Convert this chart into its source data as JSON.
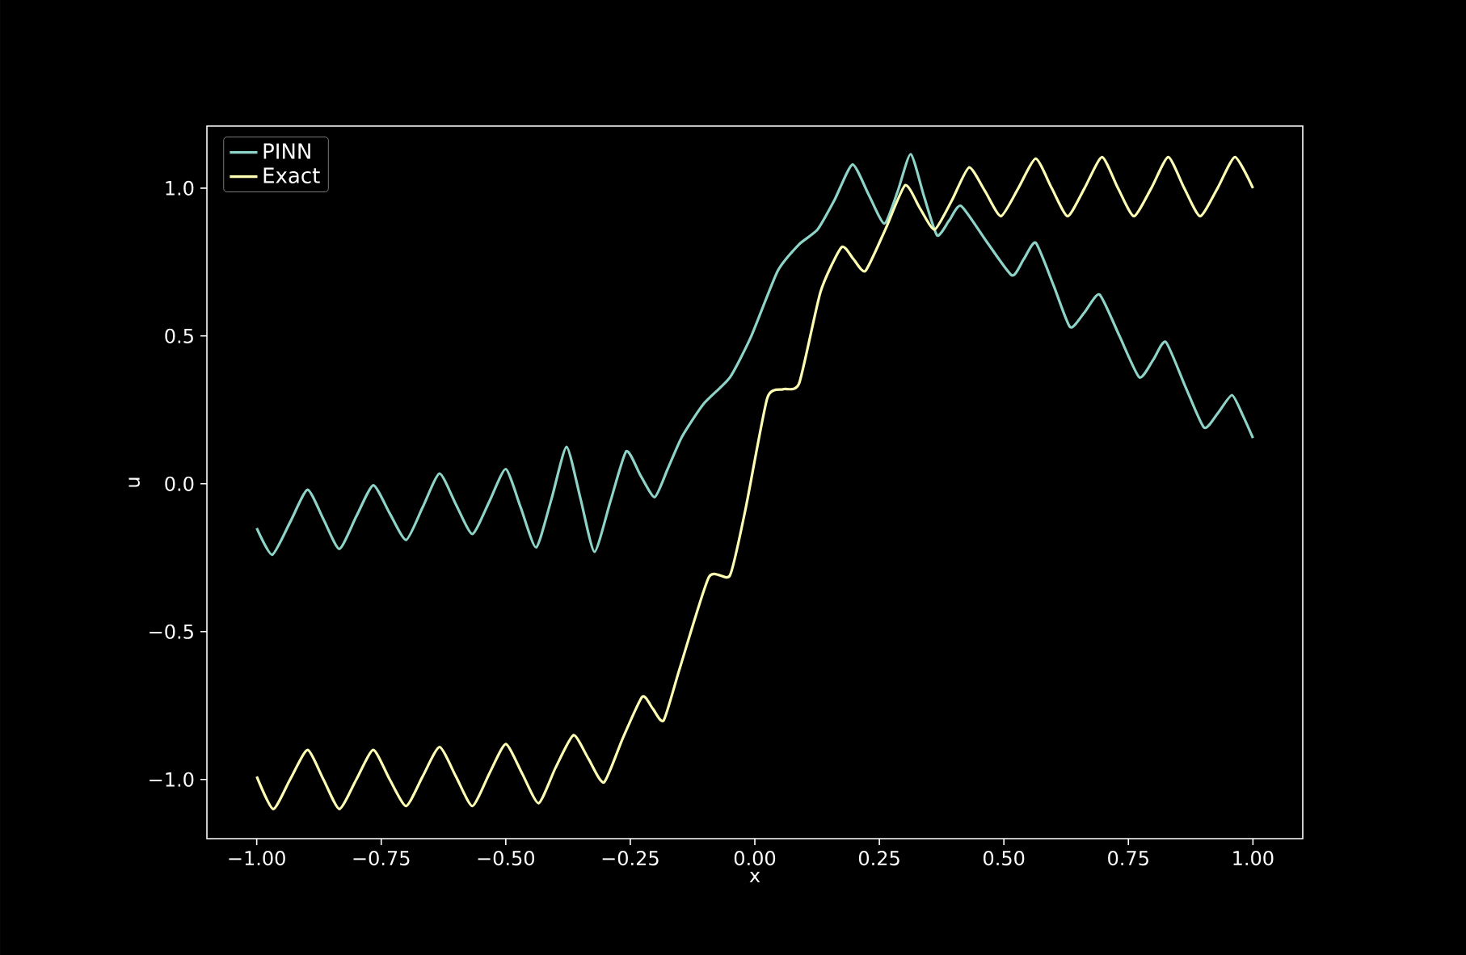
{
  "chart_data": {
    "type": "line",
    "xlabel": "x",
    "ylabel": "u",
    "xlim": [
      -1.1,
      1.1
    ],
    "ylim": [
      -1.2,
      1.21
    ],
    "xticks": [
      {
        "value": -1,
        "label": "−1.00"
      },
      {
        "value": -0.75,
        "label": "−0.75"
      },
      {
        "value": -0.5,
        "label": "−0.50"
      },
      {
        "value": -0.25,
        "label": "−0.25"
      },
      {
        "value": 0,
        "label": "0.00"
      },
      {
        "value": 0.25,
        "label": "0.25"
      },
      {
        "value": 0.5,
        "label": "0.50"
      },
      {
        "value": 0.75,
        "label": "0.75"
      },
      {
        "value": 1,
        "label": "1.00"
      }
    ],
    "yticks": [
      {
        "value": -1,
        "label": "−1.0"
      },
      {
        "value": -0.5,
        "label": "−0.5"
      },
      {
        "value": 0,
        "label": "0.0"
      },
      {
        "value": 0.5,
        "label": "0.5"
      },
      {
        "value": 1,
        "label": "1.0"
      }
    ],
    "legend": "top left",
    "series": [
      {
        "name": "PINN",
        "color": "#8dd3c7",
        "x": [
          -1.0,
          -0.969,
          -0.933,
          -0.898,
          -0.866,
          -0.834,
          -0.8,
          -0.766,
          -0.733,
          -0.7,
          -0.667,
          -0.633,
          -0.6,
          -0.567,
          -0.533,
          -0.5,
          -0.47,
          -0.439,
          -0.408,
          -0.378,
          -0.35,
          -0.322,
          -0.29,
          -0.258,
          -0.23,
          -0.201,
          -0.175,
          -0.146,
          -0.103,
          -0.05,
          -0.007,
          0.046,
          0.089,
          0.126,
          0.16,
          0.196,
          0.228,
          0.26,
          0.287,
          0.313,
          0.34,
          0.366,
          0.39,
          0.414,
          0.465,
          0.516,
          0.54,
          0.564,
          0.6,
          0.633,
          0.662,
          0.692,
          0.732,
          0.772,
          0.8,
          0.825,
          0.864,
          0.902,
          0.93,
          0.958,
          0.98,
          1.0
        ],
        "values": [
          -0.15,
          -0.24,
          -0.13,
          -0.02,
          -0.12,
          -0.22,
          -0.11,
          -0.005,
          -0.1,
          -0.19,
          -0.08,
          0.035,
          -0.07,
          -0.17,
          -0.06,
          0.05,
          -0.08,
          -0.215,
          -0.05,
          0.125,
          -0.05,
          -0.23,
          -0.06,
          0.11,
          0.03,
          -0.045,
          0.05,
          0.16,
          0.27,
          0.36,
          0.5,
          0.72,
          0.81,
          0.86,
          0.96,
          1.08,
          0.98,
          0.88,
          0.99,
          1.115,
          0.97,
          0.84,
          0.89,
          0.94,
          0.82,
          0.705,
          0.76,
          0.815,
          0.67,
          0.53,
          0.58,
          0.64,
          0.5,
          0.36,
          0.42,
          0.48,
          0.33,
          0.19,
          0.24,
          0.3,
          0.23,
          0.155
        ]
      },
      {
        "name": "Exact",
        "color": "#feffb3",
        "x": [
          -1.0,
          -0.967,
          -0.933,
          -0.898,
          -0.866,
          -0.834,
          -0.8,
          -0.766,
          -0.733,
          -0.7,
          -0.667,
          -0.633,
          -0.6,
          -0.567,
          -0.533,
          -0.5,
          -0.467,
          -0.434,
          -0.4,
          -0.364,
          -0.334,
          -0.303,
          -0.265,
          -0.226,
          -0.205,
          -0.183,
          -0.15,
          -0.092,
          -0.05,
          -0.018,
          0.025,
          0.057,
          0.089,
          0.132,
          0.174,
          0.198,
          0.222,
          0.262,
          0.302,
          0.332,
          0.361,
          0.396,
          0.43,
          0.462,
          0.494,
          0.529,
          0.564,
          0.596,
          0.628,
          0.662,
          0.697,
          0.729,
          0.761,
          0.796,
          0.83,
          0.862,
          0.894,
          0.929,
          0.964,
          1.0
        ],
        "values": [
          -0.99,
          -1.1,
          -1.0,
          -0.9,
          -1.0,
          -1.1,
          -1.0,
          -0.9,
          -1.0,
          -1.09,
          -0.99,
          -0.89,
          -0.99,
          -1.09,
          -0.98,
          -0.88,
          -0.98,
          -1.08,
          -0.96,
          -0.85,
          -0.93,
          -1.01,
          -0.86,
          -0.72,
          -0.76,
          -0.8,
          -0.62,
          -0.315,
          -0.31,
          -0.08,
          0.29,
          0.32,
          0.34,
          0.65,
          0.8,
          0.76,
          0.72,
          0.86,
          1.01,
          0.93,
          0.86,
          0.96,
          1.07,
          0.99,
          0.905,
          1.0,
          1.1,
          1.0,
          0.905,
          1.0,
          1.105,
          1.0,
          0.905,
          1.0,
          1.105,
          1.0,
          0.905,
          1.0,
          1.105,
          1.0
        ]
      }
    ]
  }
}
